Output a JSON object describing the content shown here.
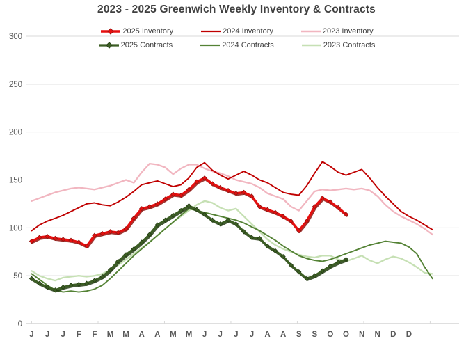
{
  "title": "2023 - 2025 Greenwich Weekly Inventory & Contracts",
  "chart_data": {
    "type": "line",
    "title": "2023 - 2025 Greenwich Weekly Inventory & Contracts",
    "x_unit": "week",
    "x_tick_labels": [
      "J",
      "J",
      "J",
      "F",
      "F",
      "M",
      "M",
      "A",
      "A",
      "M",
      "M",
      "J",
      "J",
      "J",
      "J",
      "A",
      "A",
      "S",
      "S",
      "O",
      "O",
      "N",
      "N",
      "D",
      "D"
    ],
    "x_tick_weeks_are_biweekly_starting_at_week": 1,
    "y_ticks": [
      0,
      50,
      100,
      150,
      200,
      250,
      300
    ],
    "ylim": [
      0,
      300
    ],
    "grid": "horizontal",
    "legend_position": "top-center",
    "axis_color": "#bfbfbf",
    "grid_color": "#d9d9d9",
    "tick_label_color": "#595959",
    "legend_rows": [
      [
        0,
        1,
        2
      ],
      [
        3,
        4,
        5
      ]
    ],
    "draw_order": [
      2,
      5,
      4,
      1,
      3,
      0
    ],
    "series": [
      {
        "name": "2025 Inventory",
        "color": "#e60f0f",
        "shadow": "#8f1410",
        "width": 3.4,
        "markers": true,
        "values": [
          86,
          90,
          91,
          89,
          88,
          87,
          85,
          81,
          92,
          94,
          96,
          95,
          99,
          110,
          120,
          122,
          125,
          130,
          135,
          134,
          140,
          148,
          152,
          146,
          142,
          139,
          136,
          137,
          133,
          122,
          119,
          116,
          112,
          107,
          97,
          107,
          122,
          131,
          127,
          121,
          114
        ]
      },
      {
        "name": "2024 Inventory",
        "color": "#c00000",
        "shadow": null,
        "width": 1.9,
        "markers": false,
        "values": [
          97,
          103,
          107,
          110,
          113,
          117,
          121,
          125,
          126,
          124,
          123,
          127,
          132,
          138,
          145,
          147,
          149,
          146,
          143,
          145,
          152,
          163,
          168,
          160,
          155,
          151,
          155,
          159,
          155,
          150,
          147,
          142,
          137,
          135,
          134,
          144,
          157,
          169,
          164,
          158,
          155,
          158,
          161,
          152,
          142,
          133,
          125,
          117,
          112,
          108,
          103,
          98
        ]
      },
      {
        "name": "2023 Inventory",
        "color": "#f1b6c0",
        "shadow": null,
        "width": 2.3,
        "markers": false,
        "values": [
          128,
          131,
          134,
          137,
          139,
          141,
          142,
          141,
          140,
          142,
          144,
          147,
          150,
          147,
          158,
          167,
          166,
          163,
          156,
          162,
          166,
          166,
          162,
          159,
          157,
          154,
          150,
          148,
          146,
          142,
          136,
          133,
          130,
          122,
          118,
          128,
          138,
          140,
          139,
          140,
          141,
          140,
          141,
          139,
          133,
          124,
          117,
          112,
          108,
          104,
          99,
          93
        ]
      },
      {
        "name": "2025 Contracts",
        "color": "#3c5e24",
        "shadow": "#243d14",
        "width": 3.2,
        "markers": true,
        "values": [
          47,
          42,
          38,
          35,
          38,
          40,
          41,
          42,
          45,
          49,
          56,
          65,
          72,
          78,
          85,
          93,
          103,
          108,
          113,
          118,
          123,
          119,
          114,
          108,
          104,
          108,
          104,
          96,
          90,
          89,
          81,
          76,
          70,
          61,
          54,
          47,
          50,
          55,
          60,
          64,
          67
        ]
      },
      {
        "name": "2024 Contracts",
        "color": "#548235",
        "shadow": null,
        "width": 1.9,
        "markers": false,
        "values": [
          52,
          46,
          40,
          35,
          33,
          34,
          33,
          34,
          36,
          40,
          47,
          55,
          63,
          71,
          78,
          85,
          92,
          99,
          106,
          113,
          120,
          118,
          116,
          114,
          112,
          110,
          108,
          105,
          101,
          97,
          92,
          87,
          81,
          76,
          71,
          68,
          66,
          65,
          67,
          70,
          73,
          76,
          79,
          82,
          84,
          86,
          85,
          84,
          80,
          73,
          59,
          47
        ]
      },
      {
        "name": "2023 Contracts",
        "color": "#c6e0b4",
        "shadow": null,
        "width": 2.3,
        "markers": false,
        "values": [
          55,
          50,
          47,
          45,
          48,
          49,
          50,
          49,
          50,
          52,
          56,
          61,
          67,
          73,
          79,
          85,
          92,
          99,
          106,
          112,
          118,
          124,
          128,
          126,
          121,
          118,
          120,
          112,
          104,
          96,
          88,
          82,
          78,
          75,
          72,
          70,
          69,
          71,
          71,
          67,
          65,
          68,
          71,
          66,
          63,
          67,
          70,
          68,
          64,
          59,
          53,
          52
        ]
      }
    ]
  }
}
